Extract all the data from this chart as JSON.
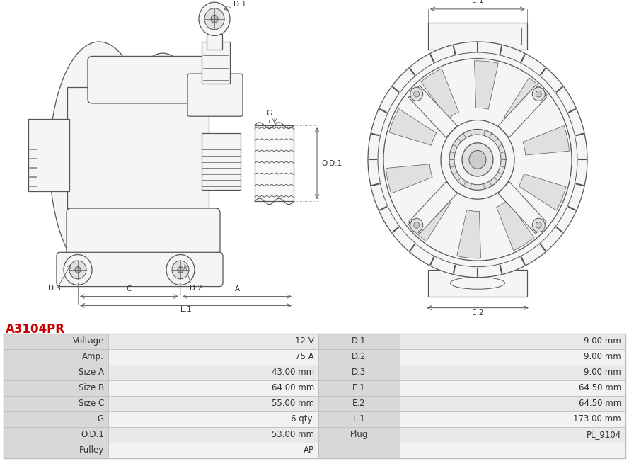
{
  "title": "A3104PR",
  "title_color": "#cc0000",
  "background_color": "#ffffff",
  "table_data": {
    "left_col1_labels": [
      "Voltage",
      "Amp.",
      "Size A",
      "Size B",
      "Size C",
      "G",
      "O.D.1",
      "Pulley"
    ],
    "left_col2_values": [
      "12 V",
      "75 A",
      "43.00 mm",
      "64.00 mm",
      "55.00 mm",
      "6 qty.",
      "53.00 mm",
      "AP"
    ],
    "right_col1_labels": [
      "D.1",
      "D.2",
      "D.3",
      "E.1",
      "E.2",
      "L.1",
      "Plug",
      ""
    ],
    "right_col2_values": [
      "9.00 mm",
      "9.00 mm",
      "9.00 mm",
      "64.50 mm",
      "64.50 mm",
      "173.00 mm",
      "PL_9104",
      ""
    ]
  },
  "row_colors": [
    "#e8e8e8",
    "#f2f2f2"
  ],
  "border_color": "#bbbbbb",
  "line_color": "#555555",
  "dim_color": "#666666",
  "text_color": "#333333",
  "label_color": "#555555"
}
